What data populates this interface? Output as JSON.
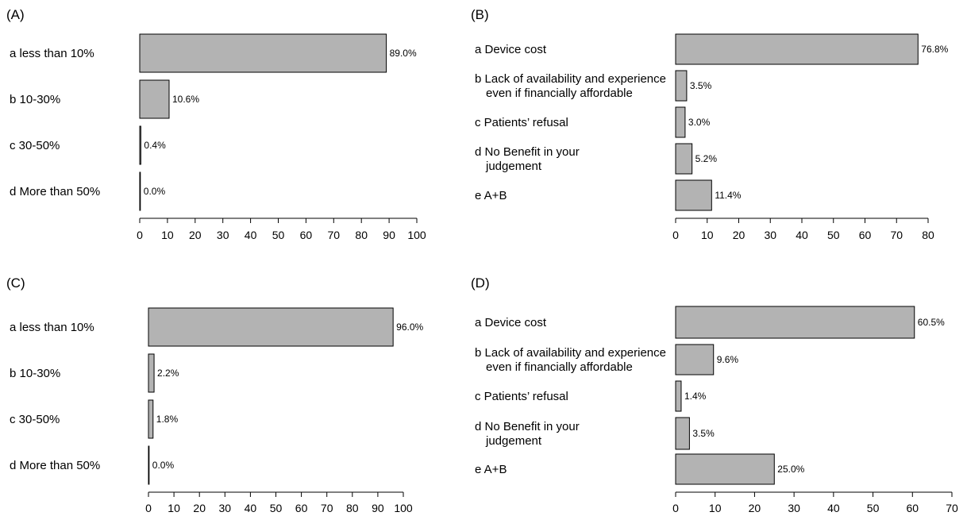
{
  "chart_data": [
    {
      "panel": "(A)",
      "type": "bar",
      "orientation": "horizontal",
      "categories": [
        [
          "a less than 10%"
        ],
        [
          "b 10-30%"
        ],
        [
          "c 30-50%"
        ],
        [
          "d More than 50%"
        ]
      ],
      "values": [
        89.0,
        10.6,
        0.4,
        0.0
      ],
      "value_labels": [
        "89.0%",
        "10.6%",
        "0.4%",
        "0.0%"
      ],
      "xlim": [
        0,
        100
      ],
      "xticks": [
        0,
        10,
        20,
        30,
        40,
        50,
        60,
        70,
        80,
        90,
        100
      ],
      "grid": false,
      "bar_color": "#b3b3b3"
    },
    {
      "panel": "(B)",
      "type": "bar",
      "orientation": "horizontal",
      "categories": [
        [
          "a Device cost"
        ],
        [
          "b Lack of availability and experience",
          "even if financially affordable"
        ],
        [
          "c Patients’ refusal"
        ],
        [
          "d No Benefit in your",
          "judgement"
        ],
        [
          "e A+B"
        ]
      ],
      "values": [
        76.8,
        3.5,
        3.0,
        5.2,
        11.4
      ],
      "value_labels": [
        "76.8%",
        "3.5%",
        "3.0%",
        "5.2%",
        "11.4%"
      ],
      "xlim": [
        0,
        80
      ],
      "xticks": [
        0,
        10,
        20,
        30,
        40,
        50,
        60,
        70,
        80
      ],
      "grid": false,
      "bar_color": "#b3b3b3"
    },
    {
      "panel": "(C)",
      "type": "bar",
      "orientation": "horizontal",
      "categories": [
        [
          "a less than 10%"
        ],
        [
          "b 10-30%"
        ],
        [
          "c 30-50%"
        ],
        [
          "d More than 50%"
        ]
      ],
      "values": [
        96.0,
        2.2,
        1.8,
        0.0
      ],
      "value_labels": [
        "96.0%",
        "2.2%",
        "1.8%",
        "0.0%"
      ],
      "xlim": [
        0,
        100
      ],
      "xticks": [
        0,
        10,
        20,
        30,
        40,
        50,
        60,
        70,
        80,
        90,
        100
      ],
      "grid": false,
      "bar_color": "#b3b3b3"
    },
    {
      "panel": "(D)",
      "type": "bar",
      "orientation": "horizontal",
      "categories": [
        [
          "a Device cost"
        ],
        [
          "b Lack of availability and experience",
          "even if financially affordable"
        ],
        [
          "c Patients’ refusal"
        ],
        [
          "d No Benefit in your",
          "judgement"
        ],
        [
          "e A+B"
        ]
      ],
      "values": [
        60.5,
        9.6,
        1.4,
        3.5,
        25.0
      ],
      "value_labels": [
        "60.5%",
        "9.6%",
        "1.4%",
        "3.5%",
        "25.0%"
      ],
      "xlim": [
        0,
        70
      ],
      "xticks": [
        0,
        10,
        20,
        30,
        40,
        50,
        60,
        70
      ],
      "grid": false,
      "bar_color": "#b3b3b3"
    }
  ]
}
